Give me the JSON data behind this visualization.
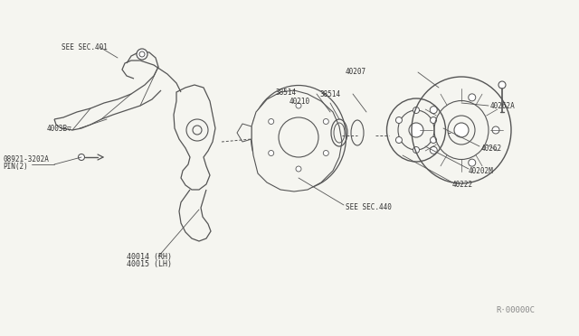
{
  "bg_color": "#f5f5f0",
  "line_color": "#555555",
  "text_color": "#333333",
  "title": "",
  "watermark": "R·00000C",
  "parts": {
    "knuckle_label1": "40014 (RH)",
    "knuckle_label2": "40015 (LH)",
    "pin_label1": "08921-3202A",
    "pin_label2": "PIN(2)",
    "bolt_label": "4003B▽",
    "sec401": "SEE SEC.401",
    "sec440": "SEE SEC.440",
    "label_38514a": "38514",
    "label_40210": "40210",
    "label_38514b": "38514",
    "label_40222": "40222",
    "label_40202M": "40202M",
    "label_40262": "40262",
    "label_40262A": "40262A",
    "label_40207": "40207"
  }
}
